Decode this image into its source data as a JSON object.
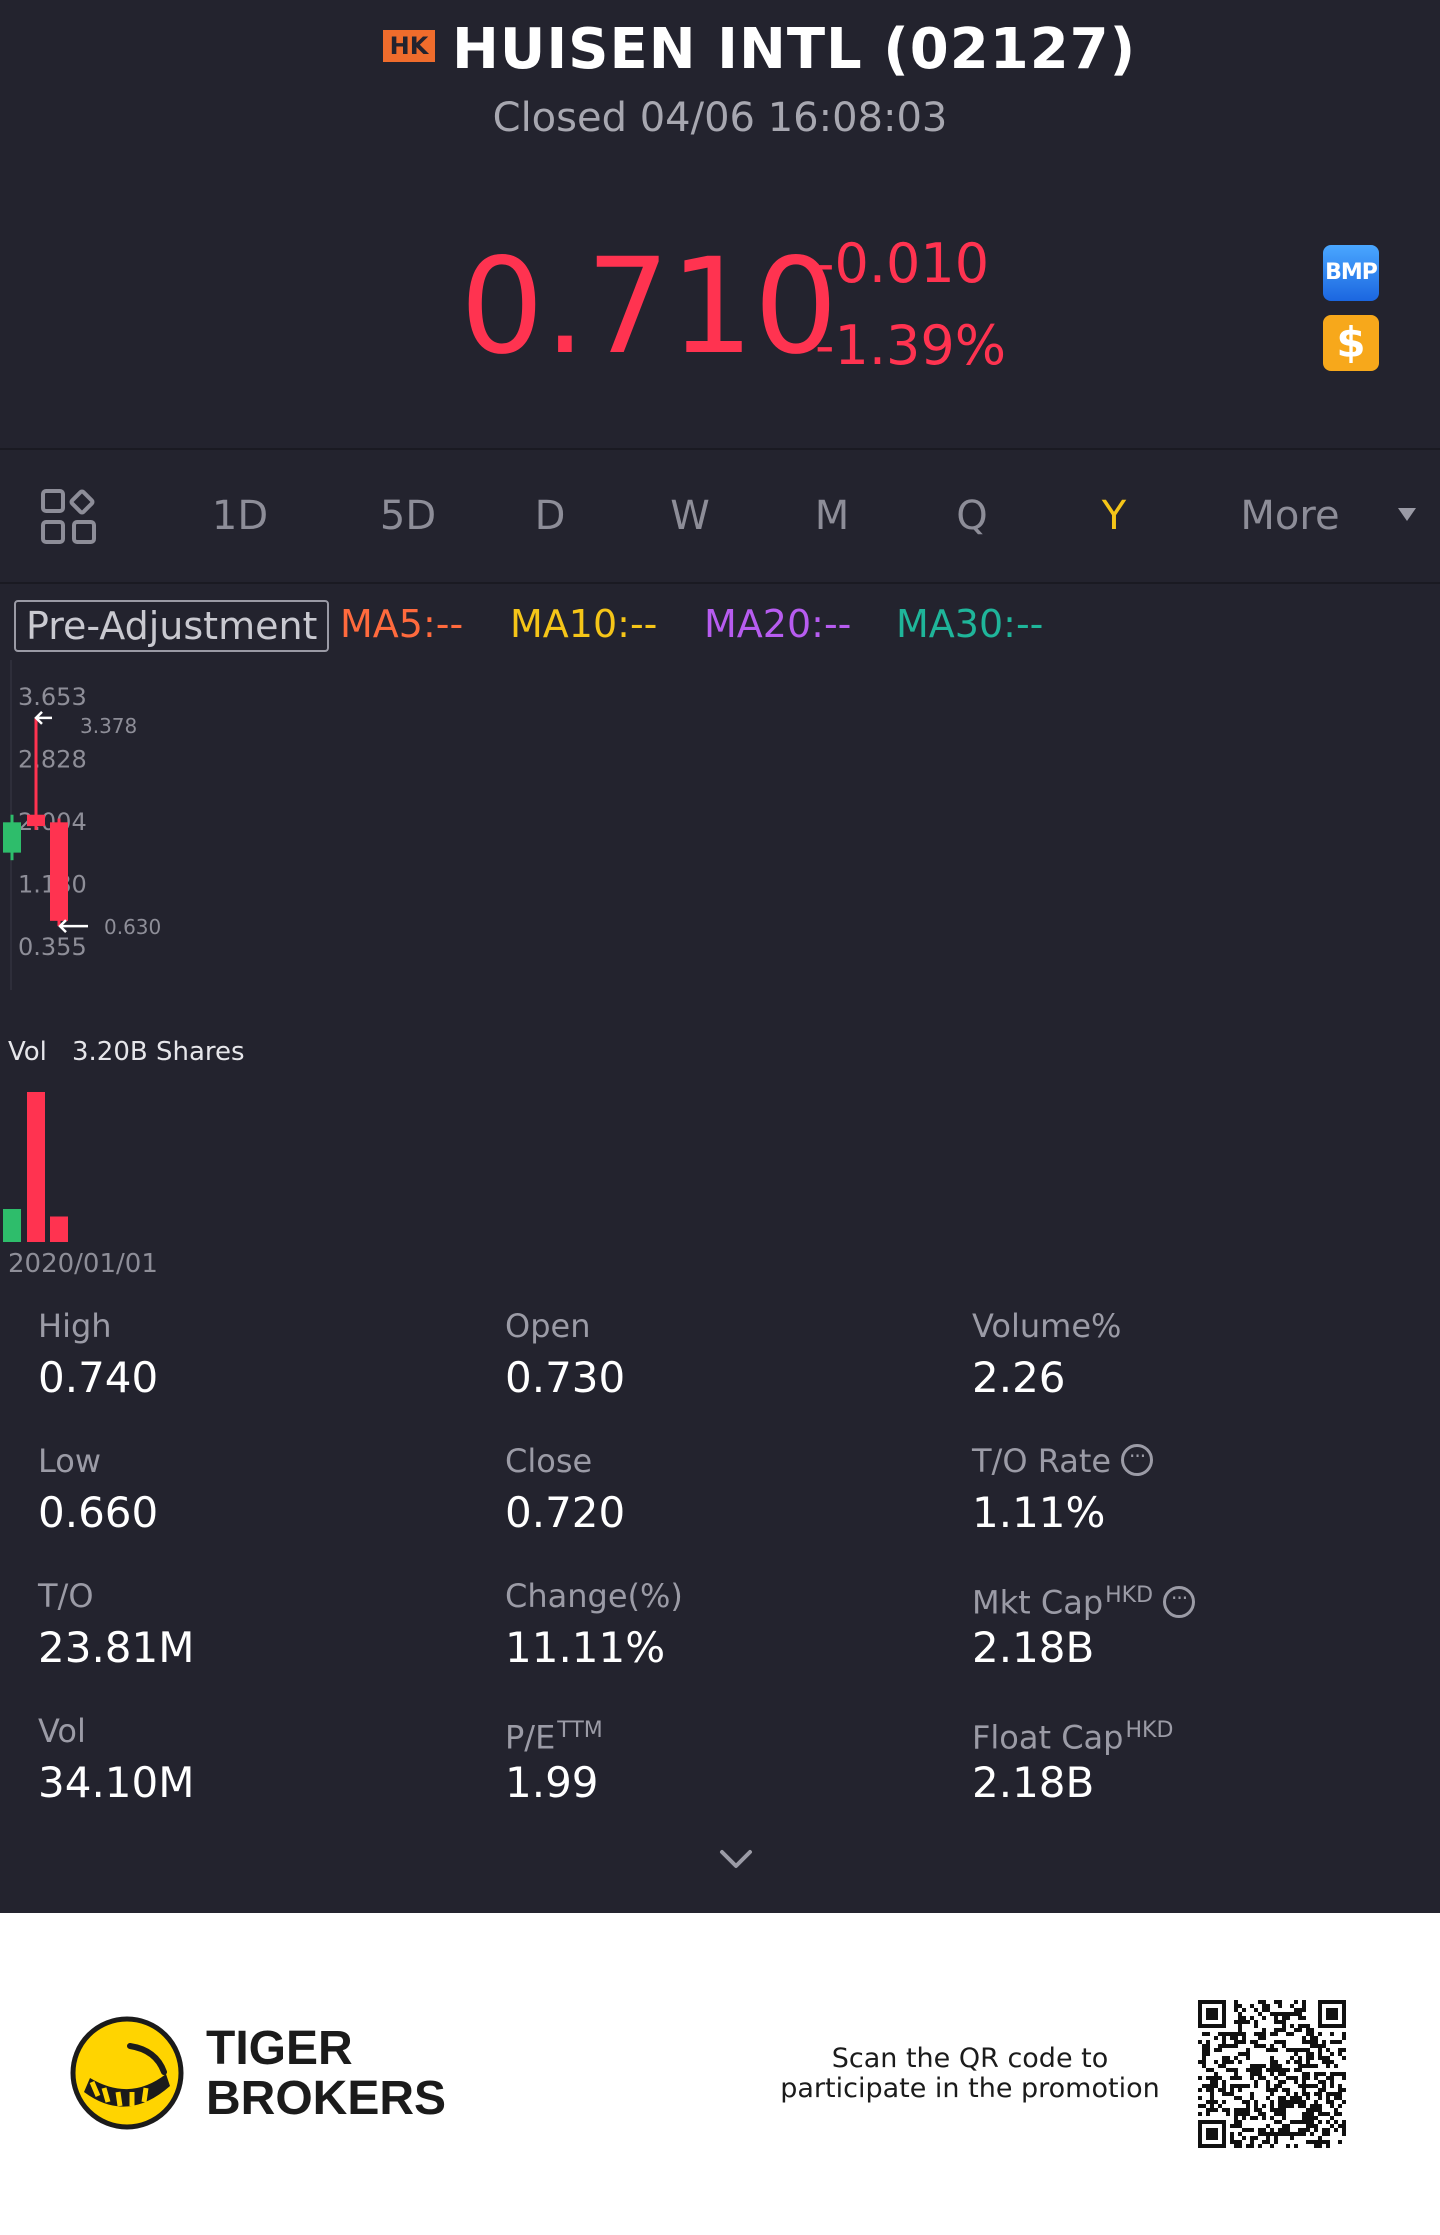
{
  "header": {
    "market": "HK",
    "title": "HUISEN INTL (02127)",
    "status": "Closed 04/06 16:08:03"
  },
  "quote": {
    "price": "0.710",
    "change": "-0.010",
    "change_pct": "-1.39%",
    "bmp_label": "BMP",
    "dollar_label": "$"
  },
  "periods": {
    "tabs": [
      "1D",
      "5D",
      "D",
      "W",
      "M",
      "Q",
      "Y",
      "More"
    ],
    "active": "Y"
  },
  "indicators": {
    "adjustment": "Pre-Adjustment",
    "ma": [
      {
        "label": "MA5:--",
        "color": "#ff6a3d"
      },
      {
        "label": "MA10:--",
        "color": "#f5c518"
      },
      {
        "label": "MA20:--",
        "color": "#b75cf0"
      },
      {
        "label": "MA30:--",
        "color": "#1fb59a"
      }
    ]
  },
  "chart_data": {
    "type": "candlestick",
    "y_ticks": [
      "3.653",
      "2.828",
      "2.004",
      "1.180",
      "0.355"
    ],
    "ylim": [
      0.355,
      3.653
    ],
    "high_marker": "3.378",
    "low_marker": "0.630",
    "candles": [
      {
        "open": 1.6,
        "close": 2.0,
        "high": 2.1,
        "low": 1.5,
        "color": "#2ebd6b"
      },
      {
        "open": 2.1,
        "close": 1.95,
        "high": 3.378,
        "low": 1.9,
        "color": "#ff3350"
      },
      {
        "open": 2.0,
        "close": 0.7,
        "high": 2.05,
        "low": 0.63,
        "color": "#ff3350"
      }
    ],
    "volume_label": "Vol",
    "volume_value": "3.20B Shares",
    "volumes": [
      0.22,
      1.0,
      0.17
    ],
    "start_date": "2020/01/01"
  },
  "stats": [
    {
      "label": "High",
      "value": "0.740"
    },
    {
      "label": "Open",
      "value": "0.730"
    },
    {
      "label": "Volume%",
      "value": "2.26"
    },
    {
      "label": "Low",
      "value": "0.660"
    },
    {
      "label": "Close",
      "value": "0.720"
    },
    {
      "label": "T/O Rate",
      "value": "1.11%"
    },
    {
      "label": "T/O",
      "value": "23.81M"
    },
    {
      "label": "Change(%)",
      "value": "11.11%"
    },
    {
      "label": "Mkt Cap",
      "sup": "HKD",
      "value": "2.18B"
    },
    {
      "label": "Vol",
      "value": "34.10M"
    },
    {
      "label": "P/E",
      "sup": "TTM",
      "value": "1.99"
    },
    {
      "label": "Float Cap",
      "sup": "HKD",
      "value": "2.18B"
    }
  ],
  "footer": {
    "brand_line1": "TIGER",
    "brand_line2": "BROKERS",
    "promo_line1": "Scan the QR code to",
    "promo_line2": "participate in the promotion"
  }
}
